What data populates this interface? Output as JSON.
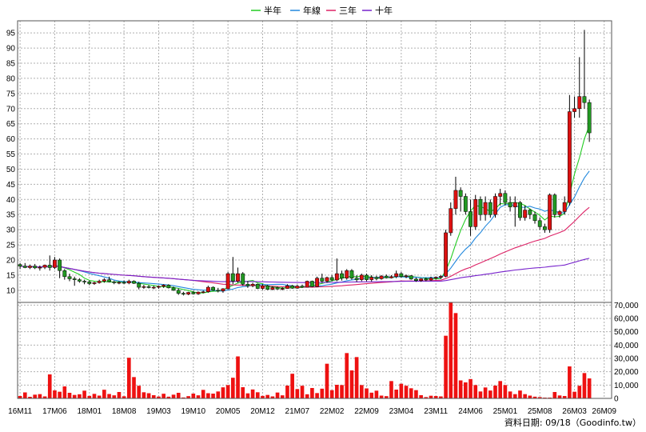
{
  "legend": [
    {
      "label": "半年",
      "color": "#22cc22"
    },
    {
      "label": "年線",
      "color": "#2288dd"
    },
    {
      "label": "三年",
      "color": "#dd2266"
    },
    {
      "label": "十年",
      "color": "#7722cc"
    }
  ],
  "footer": {
    "text": "資料日期: 09/18（Goodinfo.tw）"
  },
  "colors": {
    "up": "#dd1111",
    "down": "#229922",
    "volume": "#ee1111",
    "grid": "#b0b0b0"
  },
  "chart_data": {
    "type": "candlestick",
    "price_axis": {
      "ticks": [
        10,
        15,
        20,
        25,
        30,
        35,
        40,
        45,
        50,
        55,
        60,
        65,
        70,
        75,
        80,
        85,
        90,
        95
      ],
      "ylim": [
        6,
        99
      ]
    },
    "volume_axis": {
      "ticks": [
        "0",
        "10,000",
        "20,000",
        "30,000",
        "40,000",
        "50,000",
        "60,000",
        "70,000"
      ],
      "ylim": [
        0,
        72000
      ]
    },
    "x_labels": [
      "16M11",
      "17M06",
      "18M01",
      "18M08",
      "19M03",
      "19M10",
      "20M05",
      "20M12",
      "21M07",
      "22M02",
      "22M09",
      "23M04",
      "23M11",
      "24M06",
      "25M01",
      "25M08",
      "26M03",
      "26M09"
    ],
    "x_range": [
      0,
      119
    ],
    "x_label_index": [
      0,
      7,
      14,
      21,
      28,
      35,
      42,
      49,
      56,
      63,
      70,
      77,
      84,
      91,
      98,
      105,
      112,
      118
    ],
    "candles": [
      [
        18.5,
        19.0,
        17.0,
        18.0
      ],
      [
        18.0,
        19.0,
        17.3,
        17.5
      ],
      [
        17.5,
        18.5,
        17.0,
        18.0
      ],
      [
        18.0,
        18.7,
        17.0,
        17.4
      ],
      [
        17.4,
        18.2,
        16.5,
        17.6
      ],
      [
        17.6,
        18.5,
        17.0,
        18.3
      ],
      [
        18.3,
        21.5,
        16.5,
        17.5
      ],
      [
        17.5,
        21.0,
        17.0,
        20.0
      ],
      [
        20.0,
        20.5,
        14.0,
        16.5
      ],
      [
        16.5,
        17.0,
        13.5,
        14.5
      ],
      [
        14.5,
        15.5,
        13.0,
        13.8
      ],
      [
        13.8,
        14.5,
        11.5,
        13.5
      ],
      [
        13.5,
        14.0,
        12.5,
        13.0
      ],
      [
        13.0,
        13.5,
        12.0,
        12.8
      ],
      [
        12.8,
        13.2,
        11.7,
        12.2
      ],
      [
        12.2,
        12.8,
        11.8,
        12.5
      ],
      [
        12.5,
        13.5,
        12.2,
        13.0
      ],
      [
        13.0,
        14.0,
        12.5,
        13.5
      ],
      [
        13.5,
        14.5,
        12.6,
        12.8
      ],
      [
        12.8,
        13.2,
        12.0,
        12.5
      ],
      [
        12.5,
        13.0,
        12.0,
        12.6
      ],
      [
        12.6,
        13.2,
        12.1,
        12.4
      ],
      [
        12.4,
        13.5,
        12.0,
        13.0
      ],
      [
        13.0,
        13.3,
        12.1,
        12.3
      ],
      [
        12.3,
        12.8,
        10.3,
        11.0
      ],
      [
        11.0,
        11.8,
        10.5,
        11.2
      ],
      [
        11.2,
        11.7,
        10.6,
        10.9
      ],
      [
        10.9,
        11.5,
        10.4,
        11.0
      ],
      [
        11.0,
        11.6,
        10.5,
        11.3
      ],
      [
        11.3,
        12.0,
        10.8,
        11.7
      ],
      [
        11.7,
        12.0,
        10.6,
        10.8
      ],
      [
        10.8,
        11.2,
        9.8,
        10.0
      ],
      [
        10.0,
        10.6,
        8.5,
        9.0
      ],
      [
        9.0,
        9.5,
        8.3,
        8.7
      ],
      [
        8.7,
        9.5,
        8.4,
        9.3
      ],
      [
        9.3,
        9.8,
        8.6,
        8.8
      ],
      [
        8.8,
        9.6,
        8.5,
        9.4
      ],
      [
        9.4,
        9.9,
        9.0,
        9.5
      ],
      [
        9.5,
        11.5,
        9.2,
        11.0
      ],
      [
        11.0,
        11.3,
        9.8,
        10.0
      ],
      [
        10.0,
        10.8,
        9.3,
        9.8
      ],
      [
        9.8,
        10.7,
        9.2,
        10.5
      ],
      [
        10.5,
        16.0,
        10.3,
        15.5
      ],
      [
        15.5,
        21.0,
        12.0,
        13.0
      ],
      [
        13.0,
        17.5,
        12.5,
        15.5
      ],
      [
        15.5,
        16.0,
        11.5,
        12.0
      ],
      [
        12.0,
        13.0,
        10.8,
        11.5
      ],
      [
        11.5,
        12.5,
        11.0,
        12.0
      ],
      [
        12.0,
        12.2,
        10.4,
        10.6
      ],
      [
        10.6,
        12.0,
        10.2,
        11.5
      ],
      [
        11.5,
        11.8,
        10.1,
        10.3
      ],
      [
        10.3,
        11.3,
        10.0,
        10.9
      ],
      [
        10.9,
        11.2,
        10.2,
        10.4
      ],
      [
        10.4,
        11.0,
        10.0,
        10.6
      ],
      [
        10.6,
        12.0,
        10.5,
        11.5
      ],
      [
        11.5,
        11.8,
        10.5,
        10.7
      ],
      [
        10.7,
        11.8,
        10.5,
        11.4
      ],
      [
        11.4,
        11.9,
        10.8,
        11.0
      ],
      [
        11.0,
        13.2,
        10.9,
        13.0
      ],
      [
        13.0,
        13.2,
        11.0,
        11.2
      ],
      [
        11.2,
        14.5,
        11.0,
        14.0
      ],
      [
        14.0,
        15.5,
        12.5,
        13.0
      ],
      [
        13.0,
        14.5,
        12.5,
        14.2
      ],
      [
        14.2,
        15.0,
        13.0,
        13.4
      ],
      [
        13.4,
        20.5,
        13.0,
        15.5
      ],
      [
        15.5,
        16.5,
        13.2,
        14.0
      ],
      [
        14.0,
        17.0,
        13.5,
        16.5
      ],
      [
        16.5,
        17.0,
        13.5,
        14.0
      ],
      [
        14.0,
        15.0,
        12.8,
        13.5
      ],
      [
        13.5,
        15.5,
        13.0,
        15.0
      ],
      [
        15.0,
        15.5,
        13.0,
        13.5
      ],
      [
        13.5,
        15.0,
        12.9,
        14.3
      ],
      [
        14.3,
        14.8,
        13.3,
        13.8
      ],
      [
        13.8,
        15.0,
        13.5,
        14.7
      ],
      [
        14.7,
        15.2,
        13.9,
        14.1
      ],
      [
        14.1,
        15.0,
        13.9,
        14.5
      ],
      [
        14.5,
        16.5,
        14.0,
        15.5
      ],
      [
        15.5,
        16.0,
        14.2,
        14.5
      ],
      [
        14.5,
        15.2,
        14.0,
        14.8
      ],
      [
        14.8,
        15.0,
        13.5,
        13.7
      ],
      [
        13.7,
        14.2,
        12.8,
        13.2
      ],
      [
        13.2,
        14.0,
        12.8,
        13.8
      ],
      [
        13.8,
        14.2,
        13.0,
        13.4
      ],
      [
        13.4,
        14.5,
        13.1,
        14.0
      ],
      [
        14.0,
        14.6,
        13.5,
        14.3
      ],
      [
        14.3,
        15.0,
        13.8,
        14.6
      ],
      [
        14.6,
        30.0,
        14.3,
        29.0
      ],
      [
        29.0,
        39.0,
        28.0,
        37.0
      ],
      [
        37.0,
        47.5,
        35.0,
        43.0
      ],
      [
        43.0,
        44.0,
        36.0,
        41.0
      ],
      [
        41.0,
        42.0,
        35.0,
        36.0
      ],
      [
        36.0,
        40.0,
        28.0,
        31.0
      ],
      [
        31.0,
        41.5,
        30.0,
        40.0
      ],
      [
        40.0,
        41.0,
        33.0,
        35.0
      ],
      [
        35.0,
        41.0,
        33.0,
        39.0
      ],
      [
        39.0,
        40.0,
        34.0,
        35.0
      ],
      [
        35.0,
        42.0,
        34.0,
        41.0
      ],
      [
        41.0,
        43.5,
        38.0,
        42.0
      ],
      [
        42.0,
        43.0,
        38.0,
        39.0
      ],
      [
        39.0,
        41.0,
        36.0,
        37.5
      ],
      [
        37.5,
        41.0,
        31.0,
        39.0
      ],
      [
        39.0,
        39.5,
        33.0,
        34.0
      ],
      [
        34.0,
        38.0,
        33.0,
        36.5
      ],
      [
        36.5,
        37.0,
        33.5,
        35.0
      ],
      [
        35.0,
        36.0,
        32.0,
        33.0
      ],
      [
        33.0,
        34.0,
        30.0,
        31.0
      ],
      [
        31.0,
        32.0,
        29.0,
        30.0
      ],
      [
        30.0,
        42.0,
        29.0,
        41.5
      ],
      [
        41.5,
        42.0,
        34.0,
        35.0
      ],
      [
        35.0,
        36.5,
        34.0,
        36.0
      ],
      [
        36.0,
        41.0,
        35.0,
        39.0
      ],
      [
        39.0,
        74.5,
        38.0,
        69.0
      ],
      [
        69.0,
        74.0,
        67.0,
        70.0
      ],
      [
        70.0,
        87.0,
        67.0,
        74.0
      ],
      [
        74.0,
        96.0,
        70.0,
        72.0
      ],
      [
        72.0,
        73.0,
        59.0,
        62.0
      ]
    ],
    "volume": [
      1800,
      4500,
      1200,
      2800,
      3200,
      1500,
      18000,
      6000,
      5000,
      9000,
      4200,
      2600,
      3100,
      5800,
      1900,
      3400,
      2100,
      6500,
      3300,
      2300,
      4800,
      1600,
      30500,
      16000,
      9500,
      4600,
      3900,
      2400,
      1400,
      3500,
      1300,
      2800,
      4200,
      700,
      1700,
      3600,
      2300,
      6400,
      3900,
      3600,
      5200,
      8300,
      10000,
      15500,
      31500,
      8400,
      3800,
      6700,
      4600,
      1900,
      2600,
      1500,
      4400,
      2300,
      9600,
      18500,
      7000,
      9500,
      3100,
      7800,
      4000,
      7300,
      26000,
      6200,
      10200,
      10000,
      34000,
      21000,
      31000,
      10000,
      7500,
      4300,
      5800,
      2100,
      1700,
      13000,
      6600,
      11000,
      9500,
      7600,
      6200,
      2400,
      1000,
      2000,
      1800,
      1500,
      47000,
      72000,
      64000,
      13500,
      12000,
      14500,
      10000,
      5200,
      8200,
      5900,
      9600,
      13000,
      10000,
      5200,
      3200,
      5900,
      3200,
      2100,
      1300,
      1000,
      600,
      600,
      4800,
      2200,
      1800,
      24000,
      5000,
      9500,
      19000,
      15000
    ]
  }
}
